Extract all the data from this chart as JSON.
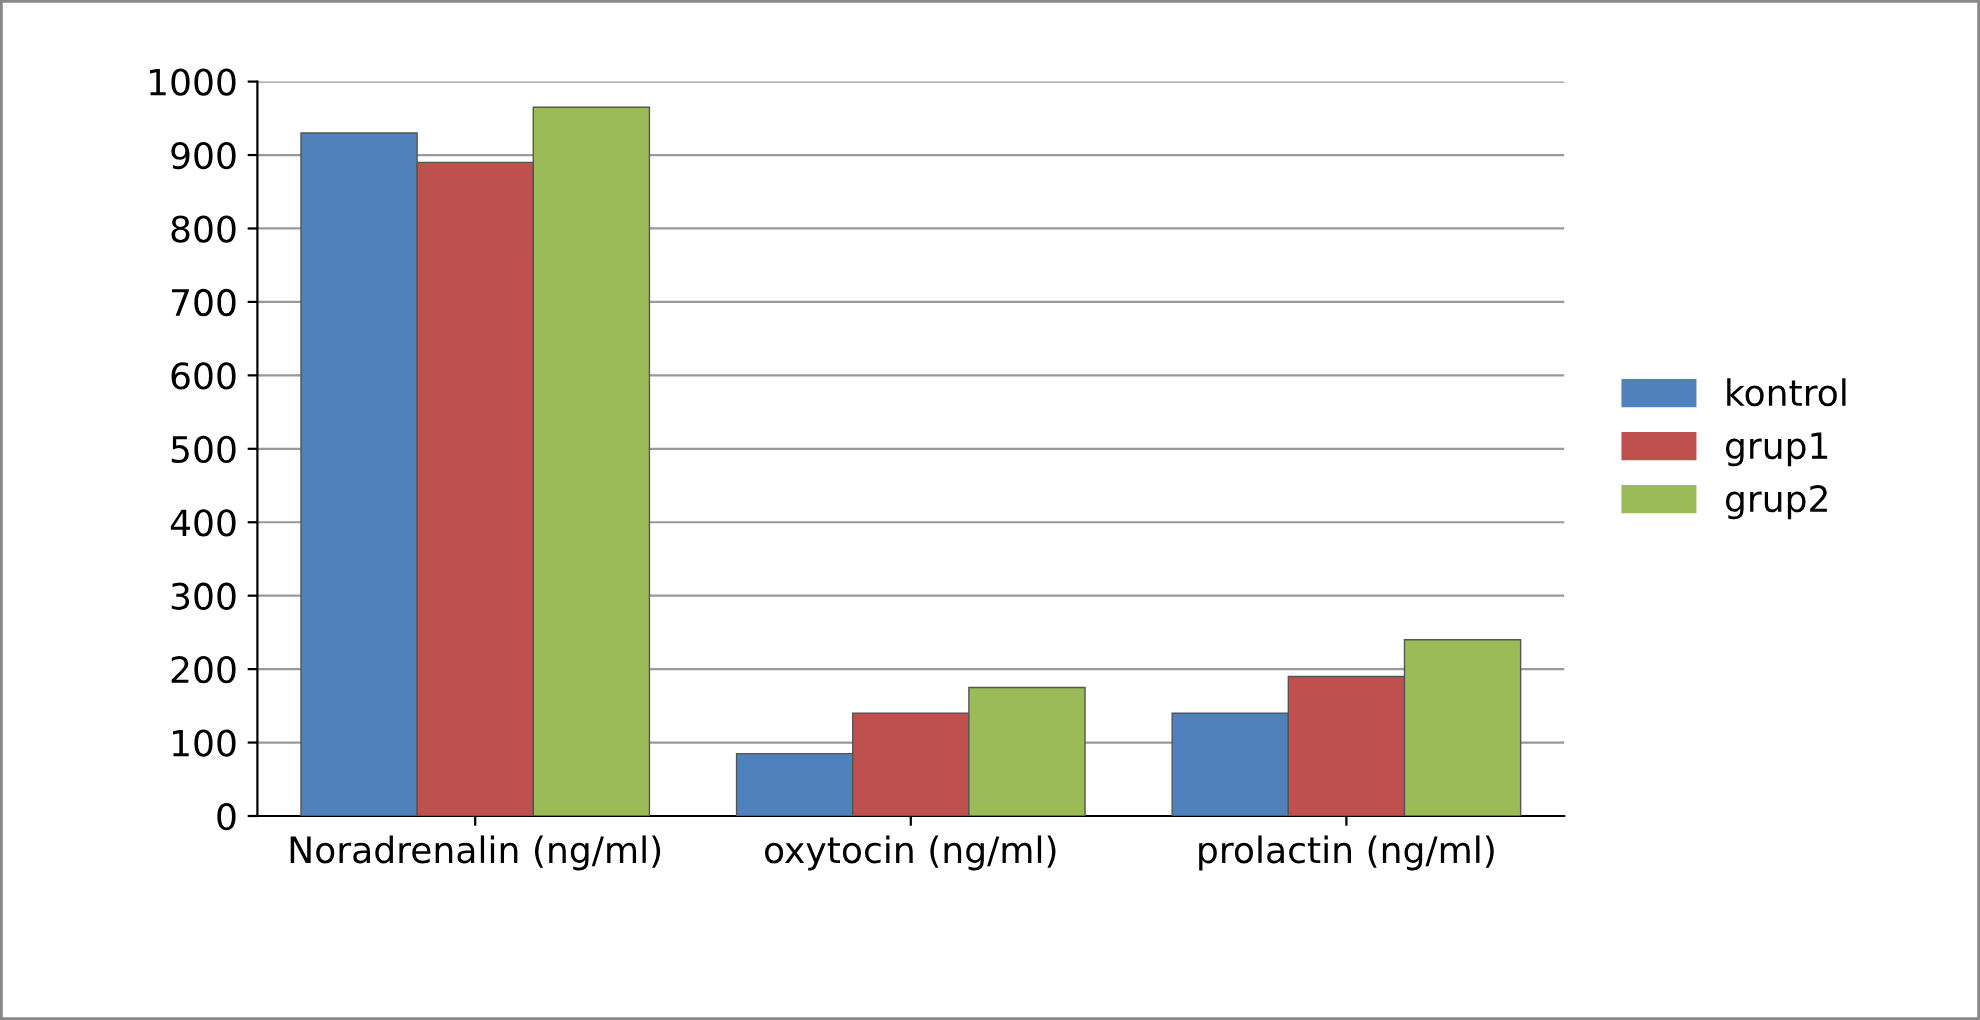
{
  "chart_data": {
    "type": "bar",
    "categories": [
      "Noradrenalin (ng/ml)",
      "oxytocin (ng/ml)",
      "prolactin (ng/ml)"
    ],
    "series": [
      {
        "name": "kontrol",
        "color": "#4f81bd",
        "values": [
          930,
          85,
          140
        ]
      },
      {
        "name": "grup1",
        "color": "#c0504d",
        "values": [
          890,
          140,
          190
        ]
      },
      {
        "name": "grup2",
        "color": "#9bbb59",
        "values": [
          965,
          175,
          240
        ]
      }
    ],
    "ylim": [
      0,
      1000
    ],
    "yticks": [
      0,
      100,
      200,
      300,
      400,
      500,
      600,
      700,
      800,
      900,
      1000
    ],
    "grid": "y",
    "legend": "right"
  }
}
